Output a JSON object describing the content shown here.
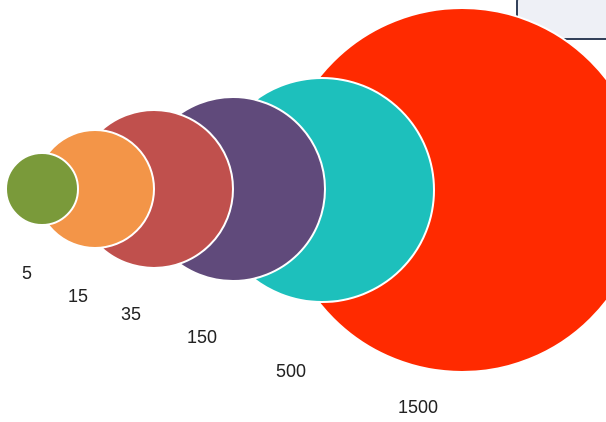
{
  "circles": [
    {
      "label": "5",
      "color": "#7a9a3a"
    },
    {
      "label": "15",
      "color": "#f39548"
    },
    {
      "label": "35",
      "color": "#c0504d"
    },
    {
      "label": "150",
      "color": "#604a7b"
    },
    {
      "label": "500",
      "color": "#1dc0bc"
    },
    {
      "label": "1500",
      "color": "#ff2a00"
    }
  ]
}
